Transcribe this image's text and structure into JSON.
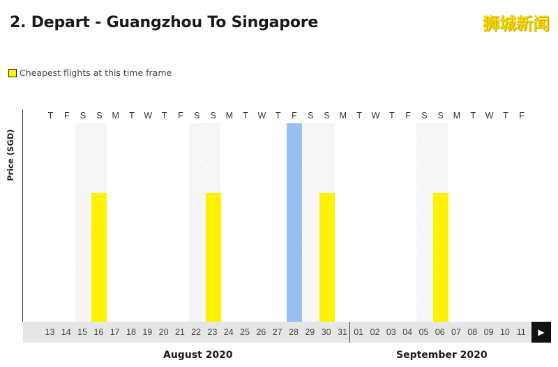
{
  "title": "2. Depart - Guangzhou To Singapore",
  "watermark": "狮城新闻",
  "legend": {
    "label": "Cheapest flights at this time frame",
    "color": "#fff200"
  },
  "y_axis_label": "Price (SGD)",
  "nav": {
    "prev_icon": "◀",
    "next_icon": "▶"
  },
  "months": [
    "August 2020",
    "September 2020"
  ],
  "chart_data": {
    "type": "bar",
    "categories": [
      "13",
      "14",
      "15",
      "16",
      "17",
      "18",
      "19",
      "20",
      "21",
      "22",
      "23",
      "24",
      "25",
      "26",
      "27",
      "28",
      "29",
      "30",
      "31",
      "01",
      "02",
      "03",
      "04",
      "05",
      "06",
      "07",
      "08",
      "09",
      "10",
      "11"
    ],
    "weekdays": [
      "T",
      "F",
      "S",
      "S",
      "M",
      "T",
      "W",
      "T",
      "F",
      "S",
      "S",
      "M",
      "T",
      "W",
      "T",
      "F",
      "S",
      "S",
      "M",
      "T",
      "W",
      "T",
      "F",
      "S",
      "S",
      "M",
      "T",
      "W",
      "T",
      "F"
    ],
    "weekend_pairs": [
      [
        2,
        3
      ],
      [
        9,
        10
      ],
      [
        16,
        17
      ],
      [
        23,
        24
      ]
    ],
    "values": [
      0,
      0,
      0,
      0.65,
      0,
      0,
      0,
      0,
      0,
      0,
      0.65,
      0,
      0,
      0,
      0,
      1.0,
      0,
      0.65,
      0,
      0,
      0,
      0,
      0,
      0,
      0.65,
      0,
      0,
      0,
      0,
      0
    ],
    "highlight": {
      "cheapest": "#fff200",
      "selected": "#9bbff2"
    },
    "bar_styles": [
      "none",
      "none",
      "none",
      "cheapest",
      "none",
      "none",
      "none",
      "none",
      "none",
      "none",
      "cheapest",
      "none",
      "none",
      "none",
      "none",
      "selected",
      "none",
      "cheapest",
      "none",
      "none",
      "none",
      "none",
      "none",
      "none",
      "cheapest",
      "none",
      "none",
      "none",
      "none",
      "none"
    ],
    "ylabel": "Price (SGD)"
  }
}
